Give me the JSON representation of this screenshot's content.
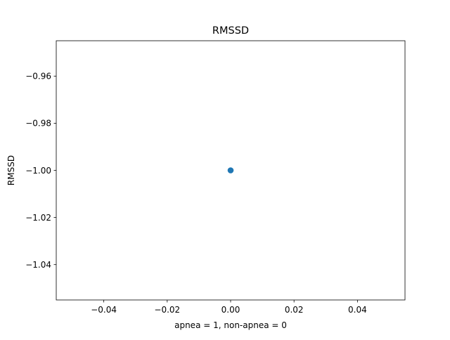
{
  "chart_data": {
    "type": "scatter",
    "title": "RMSSD",
    "xlabel": "apnea = 1, non-apnea = 0",
    "ylabel": "RMSSD",
    "xlim": [
      -0.055,
      0.055
    ],
    "ylim": [
      -1.055,
      -0.945
    ],
    "xticks": [
      -0.04,
      -0.02,
      0.0,
      0.02,
      0.04
    ],
    "xtick_labels": [
      "−0.04",
      "−0.02",
      "0.00",
      "0.02",
      "0.04"
    ],
    "yticks": [
      -0.96,
      -0.98,
      -1.0,
      -1.02,
      -1.04
    ],
    "ytick_labels": [
      "−0.96",
      "−0.98",
      "−1.00",
      "−1.02",
      "−1.04"
    ],
    "grid": false,
    "points": [
      {
        "x": 0.0,
        "y": -1.0
      }
    ],
    "colors": {
      "marker": "#1f77b4",
      "axes": "#000000",
      "background": "#ffffff"
    }
  }
}
